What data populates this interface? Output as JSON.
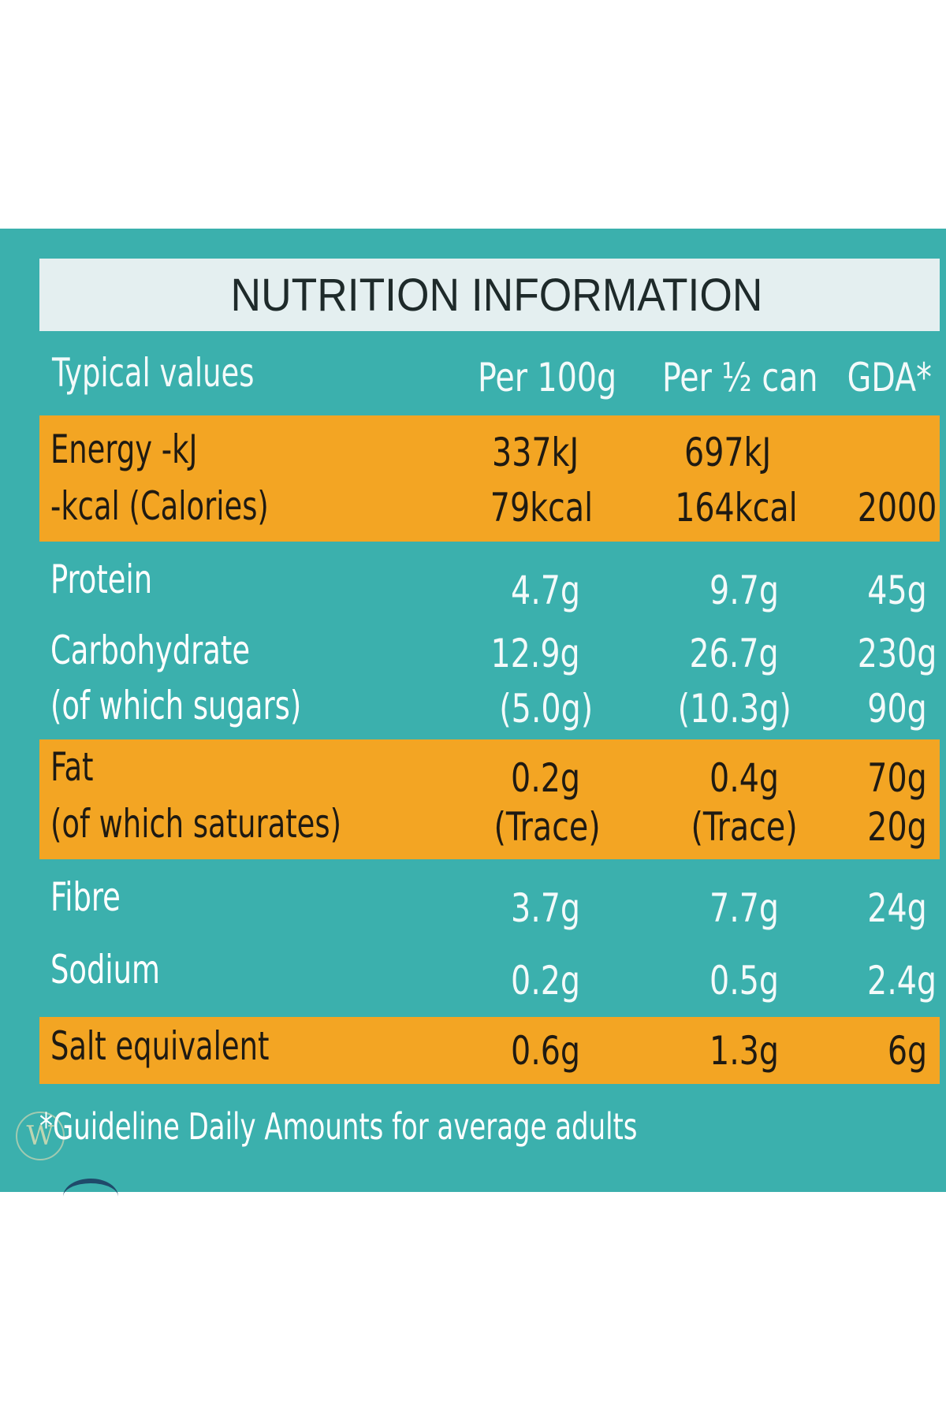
{
  "title": "NUTRITION INFORMATION",
  "columns": {
    "label": "Typical values",
    "per100": "Per 100g",
    "perhalf": "Per ½ can",
    "gda": "GDA*"
  },
  "rows": [
    {
      "label": "Energy -kJ",
      "per100": "337kJ",
      "perhalf": "697kJ",
      "gda": ""
    },
    {
      "label": "-kcal (Calories)",
      "per100": "79kcal",
      "perhalf": "164kcal",
      "gda": "2000"
    },
    {
      "label": "Protein",
      "per100": "4.7g",
      "perhalf": "9.7g",
      "gda": "45g"
    },
    {
      "label": "Carbohydrate",
      "per100": "12.9g",
      "perhalf": "26.7g",
      "gda": "230g"
    },
    {
      "label": "(of which sugars)",
      "per100": "(5.0g)",
      "perhalf": "(10.3g)",
      "gda": "90g"
    },
    {
      "label": "Fat",
      "per100": "0.2g",
      "perhalf": "0.4g",
      "gda": "70g"
    },
    {
      "label": "(of which saturates)",
      "per100": "(Trace)",
      "perhalf": "(Trace)",
      "gda": "20g"
    },
    {
      "label": "Fibre",
      "per100": "3.7g",
      "perhalf": "7.7g",
      "gda": "24g"
    },
    {
      "label": "Sodium",
      "per100": "0.2g",
      "perhalf": "0.5g",
      "gda": "2.4g"
    },
    {
      "label": "Salt equivalent",
      "per100": "0.6g",
      "perhalf": "1.3g",
      "gda": "6g"
    }
  ],
  "footnote": "*Guideline Daily Amounts for average adults",
  "colors": {
    "panel": "#3bb0ad",
    "band": "#f3a523",
    "title_bar": "#e4eff0"
  }
}
